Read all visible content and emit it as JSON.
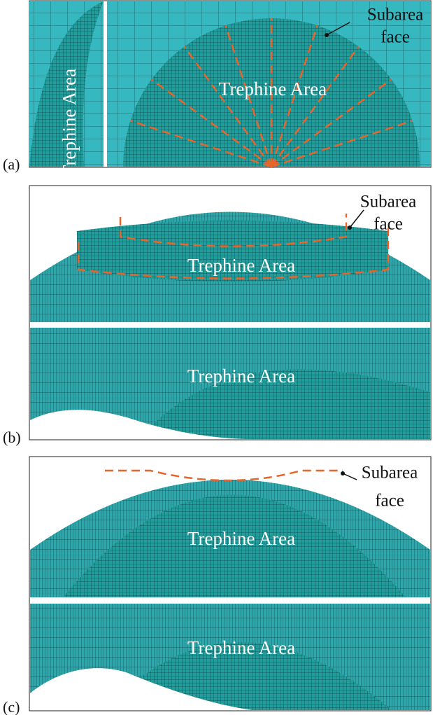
{
  "panels": [
    {
      "label": "(a)",
      "trephine_labels": [
        "Trephine Area",
        "Trephine Area"
      ],
      "subarea_label": [
        "Subarea",
        "face"
      ]
    },
    {
      "label": "(b)",
      "trephine_labels": [
        "Trephine Area",
        "Trephine Area"
      ],
      "subarea_label": [
        "Subarea",
        "face"
      ]
    },
    {
      "label": "(c)",
      "trephine_labels": [
        "Trephine Area",
        "Trephine Area"
      ],
      "subarea_label": [
        "Subarea",
        "face"
      ]
    }
  ]
}
